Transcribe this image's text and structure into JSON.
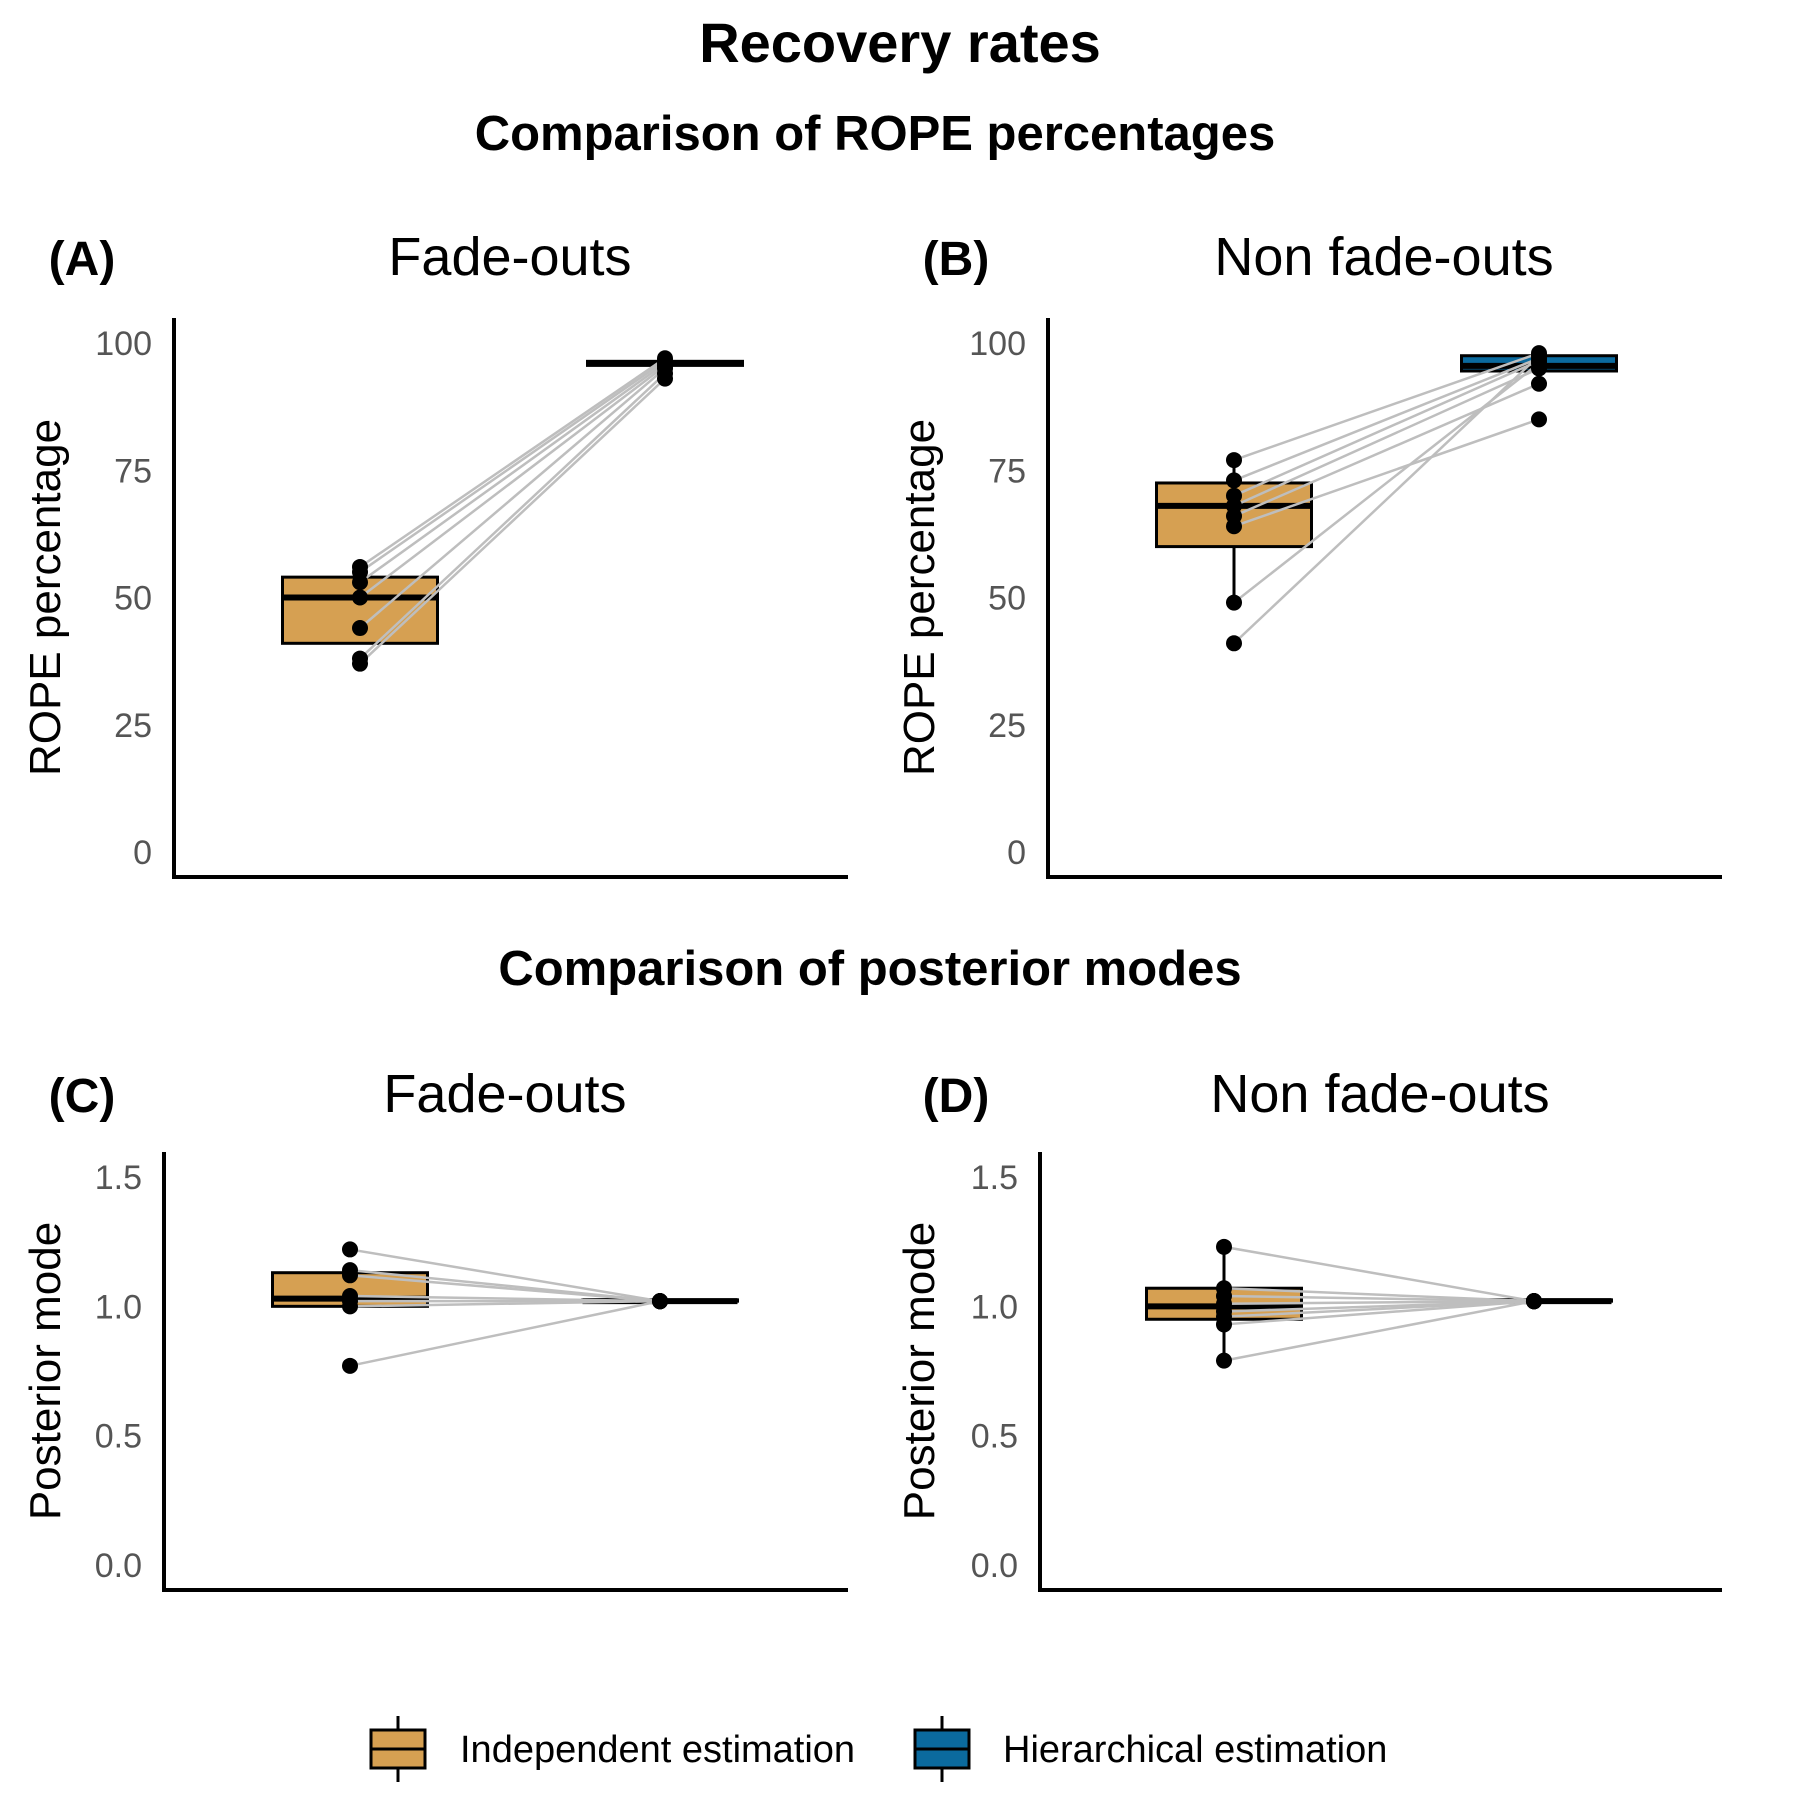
{
  "figure": {
    "title": "Recovery rates",
    "section_titles": [
      "Comparison of ROPE percentages",
      "Comparison of posterior modes"
    ]
  },
  "colors": {
    "independent": "#D6A052",
    "hierarchical": "#0B6A9E",
    "pair_lines": "#BEBEBE",
    "points": "#000000"
  },
  "legend": {
    "items": [
      {
        "label": "Independent estimation",
        "color": "#D6A052"
      },
      {
        "label": "Hierarchical estimation",
        "color": "#0B6A9E"
      }
    ]
  },
  "chart_data": [
    {
      "type": "boxplot",
      "panel_label": "(A)",
      "title": "Fade-outs",
      "ylabel": "ROPE percentage",
      "xlabel": "",
      "ylim": [
        0,
        100
      ],
      "yticks": [
        "0",
        "25",
        "50",
        "75",
        "100"
      ],
      "yticks_values": [
        0,
        25,
        50,
        75,
        100
      ],
      "categories": [
        "Independent estimation",
        "Hierarchical estimation"
      ],
      "boxes": [
        {
          "q1": 41,
          "median": 50,
          "q3": 54,
          "whisker_low": 41,
          "whisker_high": 54,
          "color": "#D6A052"
        },
        {
          "q1": 95.6,
          "median": 96,
          "q3": 96.4,
          "whisker_low": 95.6,
          "whisker_high": 96.4,
          "color": "#0B6A9E"
        }
      ],
      "points": [
        {
          "independent": 56,
          "hierarchical": 97
        },
        {
          "independent": 55,
          "hierarchical": 96.5
        },
        {
          "independent": 53,
          "hierarchical": 96
        },
        {
          "independent": 50,
          "hierarchical": 95.5
        },
        {
          "independent": 44,
          "hierarchical": 95
        },
        {
          "independent": 38,
          "hierarchical": 94
        },
        {
          "independent": 37,
          "hierarchical": 93
        }
      ]
    },
    {
      "type": "boxplot",
      "panel_label": "(B)",
      "title": "Non fade-outs",
      "ylabel": "ROPE percentage",
      "xlabel": "",
      "ylim": [
        0,
        100
      ],
      "yticks": [
        "0",
        "25",
        "50",
        "75",
        "100"
      ],
      "yticks_values": [
        0,
        25,
        50,
        75,
        100
      ],
      "categories": [
        "Independent estimation",
        "Hierarchical estimation"
      ],
      "boxes": [
        {
          "q1": 60,
          "median": 68,
          "q3": 72.5,
          "whisker_low": 49,
          "whisker_high": 77,
          "color": "#D6A052"
        },
        {
          "q1": 94.5,
          "median": 95.5,
          "q3": 97.5,
          "whisker_low": 92,
          "whisker_high": 98.5,
          "color": "#0B6A9E"
        }
      ],
      "points": [
        {
          "independent": 77,
          "hierarchical": 98
        },
        {
          "independent": 73,
          "hierarchical": 97
        },
        {
          "independent": 70,
          "hierarchical": 96.5
        },
        {
          "independent": 68,
          "hierarchical": 95
        },
        {
          "independent": 66,
          "hierarchical": 92
        },
        {
          "independent": 64,
          "hierarchical": 85
        },
        {
          "independent": 49,
          "hierarchical": 96
        },
        {
          "independent": 41,
          "hierarchical": 97.5
        }
      ]
    },
    {
      "type": "boxplot",
      "panel_label": "(C)",
      "title": "Fade-outs",
      "ylabel": "Posterior mode",
      "xlabel": "",
      "ylim": [
        0,
        1.5
      ],
      "yticks": [
        "0.0",
        "0.5",
        "1.0",
        "1.5"
      ],
      "yticks_values": [
        0,
        0.5,
        1.0,
        1.5
      ],
      "categories": [
        "Independent estimation",
        "Hierarchical estimation"
      ],
      "boxes": [
        {
          "q1": 1.0,
          "median": 1.03,
          "q3": 1.13,
          "whisker_low": 1.0,
          "whisker_high": 1.13,
          "color": "#D6A052"
        },
        {
          "q1": 1.02,
          "median": 1.02,
          "q3": 1.025,
          "whisker_low": 1.02,
          "whisker_high": 1.025,
          "color": "#0B6A9E"
        }
      ],
      "points": [
        {
          "independent": 1.22,
          "hierarchical": 1.02
        },
        {
          "independent": 1.14,
          "hierarchical": 1.02
        },
        {
          "independent": 1.12,
          "hierarchical": 1.02
        },
        {
          "independent": 1.04,
          "hierarchical": 1.02
        },
        {
          "independent": 1.02,
          "hierarchical": 1.02
        },
        {
          "independent": 1.0,
          "hierarchical": 1.02
        },
        {
          "independent": 0.77,
          "hierarchical": 1.02
        }
      ]
    },
    {
      "type": "boxplot",
      "panel_label": "(D)",
      "title": "Non fade-outs",
      "ylabel": "Posterior mode",
      "xlabel": "",
      "ylim": [
        0,
        1.5
      ],
      "yticks": [
        "0.0",
        "0.5",
        "1.0",
        "1.5"
      ],
      "yticks_values": [
        0,
        0.5,
        1.0,
        1.5
      ],
      "categories": [
        "Independent estimation",
        "Hierarchical estimation"
      ],
      "boxes": [
        {
          "q1": 0.95,
          "median": 1.0,
          "q3": 1.07,
          "whisker_low": 0.79,
          "whisker_high": 1.23,
          "color": "#D6A052"
        },
        {
          "q1": 1.02,
          "median": 1.02,
          "q3": 1.025,
          "whisker_low": 1.02,
          "whisker_high": 1.025,
          "color": "#0B6A9E"
        }
      ],
      "points": [
        {
          "independent": 1.23,
          "hierarchical": 1.02
        },
        {
          "independent": 1.07,
          "hierarchical": 1.02
        },
        {
          "independent": 1.04,
          "hierarchical": 1.02
        },
        {
          "independent": 1.01,
          "hierarchical": 1.02
        },
        {
          "independent": 0.98,
          "hierarchical": 1.02
        },
        {
          "independent": 0.96,
          "hierarchical": 1.02
        },
        {
          "independent": 0.93,
          "hierarchical": 1.02
        },
        {
          "independent": 0.79,
          "hierarchical": 1.02
        }
      ]
    }
  ]
}
